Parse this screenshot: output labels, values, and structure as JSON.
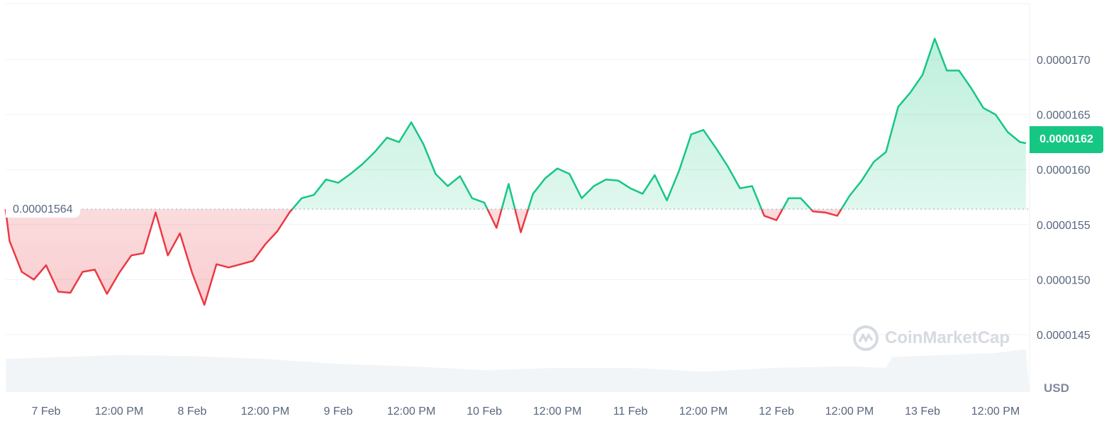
{
  "chart_data": {
    "type": "area",
    "currency_label": "USD",
    "watermark": "CoinMarketCap",
    "baseline": {
      "value": 1.564e-05,
      "label": "0.00001564"
    },
    "current_price": {
      "value": 1.62e-05,
      "label": "0.0000162"
    },
    "colors": {
      "up": "#16c784",
      "down": "#ea3943",
      "badge": "#16c784",
      "volume": "#eff2f5"
    },
    "y_axis": {
      "position": "right",
      "ticks": [
        {
          "value": 1.7e-05,
          "label": "0.0000170"
        },
        {
          "value": 1.65e-05,
          "label": "0.0000165"
        },
        {
          "value": 1.6e-05,
          "label": "0.0000160"
        },
        {
          "value": 1.55e-05,
          "label": "0.0000155"
        },
        {
          "value": 1.5e-05,
          "label": "0.0000150"
        },
        {
          "value": 1.45e-05,
          "label": "0.0000145"
        }
      ],
      "grid": true
    },
    "x_axis": {
      "ticks": [
        {
          "t": "02-07 00:00",
          "label": "7 Feb"
        },
        {
          "t": "02-07 12:00",
          "label": "12:00 PM"
        },
        {
          "t": "02-08 00:00",
          "label": "8 Feb"
        },
        {
          "t": "02-08 12:00",
          "label": "12:00 PM"
        },
        {
          "t": "02-09 00:00",
          "label": "9 Feb"
        },
        {
          "t": "02-09 12:00",
          "label": "12:00 PM"
        },
        {
          "t": "02-10 00:00",
          "label": "10 Feb"
        },
        {
          "t": "02-10 12:00",
          "label": "12:00 PM"
        },
        {
          "t": "02-11 00:00",
          "label": "11 Feb"
        },
        {
          "t": "02-11 12:00",
          "label": "12:00 PM"
        },
        {
          "t": "02-12 00:00",
          "label": "12 Feb"
        },
        {
          "t": "02-12 12:00",
          "label": "12:00 PM"
        },
        {
          "t": "02-13 00:00",
          "label": "13 Feb"
        },
        {
          "t": "02-13 12:00",
          "label": "12:00 PM"
        }
      ]
    },
    "price_series": {
      "times": [
        "02-06 17:20",
        "02-06 18:00",
        "02-06 20:00",
        "02-06 22:00",
        "02-07 00:00",
        "02-07 02:00",
        "02-07 04:00",
        "02-07 06:00",
        "02-07 08:00",
        "02-07 10:00",
        "02-07 12:00",
        "02-07 14:00",
        "02-07 16:00",
        "02-07 18:00",
        "02-07 20:00",
        "02-07 22:00",
        "02-08 00:00",
        "02-08 02:00",
        "02-08 04:00",
        "02-08 06:00",
        "02-08 08:00",
        "02-08 10:00",
        "02-08 12:00",
        "02-08 14:00",
        "02-08 16:00",
        "02-08 18:00",
        "02-08 20:00",
        "02-08 22:00",
        "02-09 00:00",
        "02-09 02:00",
        "02-09 04:00",
        "02-09 06:00",
        "02-09 08:00",
        "02-09 10:00",
        "02-09 12:00",
        "02-09 14:00",
        "02-09 16:00",
        "02-09 18:00",
        "02-09 20:00",
        "02-09 22:00",
        "02-10 00:00",
        "02-10 02:00",
        "02-10 04:00",
        "02-10 06:00",
        "02-10 08:00",
        "02-10 10:00",
        "02-10 12:00",
        "02-10 14:00",
        "02-10 16:00",
        "02-10 18:00",
        "02-10 20:00",
        "02-10 22:00",
        "02-11 00:00",
        "02-11 02:00",
        "02-11 04:00",
        "02-11 06:00",
        "02-11 08:00",
        "02-11 10:00",
        "02-11 12:00",
        "02-11 14:00",
        "02-11 16:00",
        "02-11 18:00",
        "02-11 20:00",
        "02-11 22:00",
        "02-12 00:00",
        "02-12 02:00",
        "02-12 04:00",
        "02-12 06:00",
        "02-12 08:00",
        "02-12 10:00",
        "02-12 12:00",
        "02-12 14:00",
        "02-12 16:00",
        "02-12 18:00",
        "02-12 20:00",
        "02-12 22:00",
        "02-13 00:00",
        "02-13 02:00",
        "02-13 04:00",
        "02-13 06:00",
        "02-13 08:00",
        "02-13 10:00",
        "02-13 12:00",
        "02-13 14:00",
        "02-13 16:00",
        "02-13 17:00"
      ],
      "prices": [
        1.564e-05,
        1.535e-05,
        1.507e-05,
        1.5e-05,
        1.513e-05,
        1.489e-05,
        1.488e-05,
        1.507e-05,
        1.509e-05,
        1.487e-05,
        1.506e-05,
        1.522e-05,
        1.524e-05,
        1.561e-05,
        1.522e-05,
        1.542e-05,
        1.506e-05,
        1.477e-05,
        1.514e-05,
        1.511e-05,
        1.514e-05,
        1.517e-05,
        1.532e-05,
        1.544e-05,
        1.561e-05,
        1.574e-05,
        1.577e-05,
        1.591e-05,
        1.588e-05,
        1.596e-05,
        1.605e-05,
        1.616e-05,
        1.629e-05,
        1.625e-05,
        1.643e-05,
        1.623e-05,
        1.596e-05,
        1.585e-05,
        1.594e-05,
        1.574e-05,
        1.57e-05,
        1.547e-05,
        1.587e-05,
        1.543e-05,
        1.578e-05,
        1.592e-05,
        1.601e-05,
        1.596e-05,
        1.574e-05,
        1.585e-05,
        1.591e-05,
        1.59e-05,
        1.583e-05,
        1.578e-05,
        1.595e-05,
        1.572e-05,
        1.599e-05,
        1.632e-05,
        1.636e-05,
        1.62e-05,
        1.603e-05,
        1.583e-05,
        1.585e-05,
        1.558e-05,
        1.554e-05,
        1.574e-05,
        1.574e-05,
        1.562e-05,
        1.561e-05,
        1.558e-05,
        1.576e-05,
        1.59e-05,
        1.607e-05,
        1.616e-05,
        1.657e-05,
        1.67e-05,
        1.686e-05,
        1.719e-05,
        1.69e-05,
        1.69e-05,
        1.674e-05,
        1.656e-05,
        1.65e-05,
        1.634e-05,
        1.625e-05,
        1.624e-05
      ]
    },
    "volume_relative": {
      "times": [
        "02-06 17:20",
        "02-07 12:00",
        "02-08 00:00",
        "02-08 12:00",
        "02-09 00:00",
        "02-09 12:00",
        "02-10 00:00",
        "02-10 12:00",
        "02-11 00:00",
        "02-11 12:00",
        "02-12 00:00",
        "02-12 12:00",
        "02-12 18:00",
        "02-12 19:00",
        "02-13 12:00",
        "02-13 17:00"
      ],
      "values": [
        0.85,
        0.95,
        0.92,
        0.85,
        0.72,
        0.66,
        0.56,
        0.62,
        0.62,
        0.52,
        0.62,
        0.66,
        0.62,
        0.9,
        1.0,
        1.1
      ]
    }
  }
}
